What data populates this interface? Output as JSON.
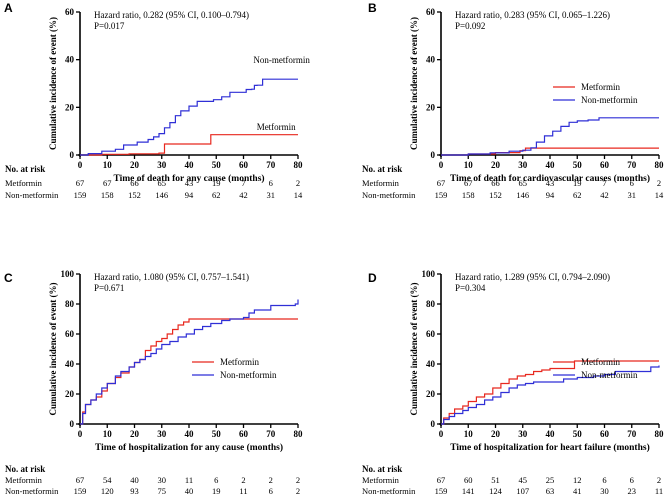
{
  "colors": {
    "metformin": "#e8281f",
    "non_metformin": "#2f2fd6",
    "axis": "#000000"
  },
  "risk_title": "No. at risk",
  "chart_data": [
    {
      "type": "line",
      "panel": "A",
      "title": "",
      "xlabel": "Time of death for any cause (months)",
      "ylabel": "Cumulative incidence of event (%)",
      "xlim": [
        0,
        80
      ],
      "ylim": [
        0,
        60
      ],
      "xticks": [
        0,
        10,
        20,
        30,
        40,
        50,
        60,
        70,
        80
      ],
      "yticks": [
        0,
        20,
        40,
        60
      ],
      "annotation": [
        "Hazard ratio, 0.282 (95% CI, 0.100–0.794)",
        "P=0.017"
      ],
      "legend_style": "inline",
      "series": [
        {
          "name": "Metformin",
          "color_key": "metformin",
          "points": [
            [
              0,
              0
            ],
            [
              8,
              0.3
            ],
            [
              18,
              0.5
            ],
            [
              29,
              0.8
            ],
            [
              31,
              4.6
            ],
            [
              47,
              4.6
            ],
            [
              48,
              8.5
            ],
            [
              80,
              8.5
            ]
          ]
        },
        {
          "name": "Non-metformin",
          "color_key": "non_metformin",
          "points": [
            [
              0,
              0
            ],
            [
              3,
              0.6
            ],
            [
              8,
              1.6
            ],
            [
              13,
              2.4
            ],
            [
              16,
              4.2
            ],
            [
              21,
              5.4
            ],
            [
              25,
              6.5
            ],
            [
              27,
              7.6
            ],
            [
              29,
              9.0
            ],
            [
              31,
              11.4
            ],
            [
              33,
              13.6
            ],
            [
              35,
              16.5
            ],
            [
              37,
              18.5
            ],
            [
              40,
              20.5
            ],
            [
              43,
              22.5
            ],
            [
              49,
              23.2
            ],
            [
              52,
              24.4
            ],
            [
              54,
              24.4
            ],
            [
              55,
              26.3
            ],
            [
              60,
              26.3
            ],
            [
              61,
              27.5
            ],
            [
              63,
              27.6
            ],
            [
              64,
              29.2
            ],
            [
              65,
              29.3
            ],
            [
              67,
              31.8
            ],
            [
              80,
              31.8
            ]
          ]
        }
      ],
      "risk": {
        "times": [
          0,
          10,
          20,
          30,
          40,
          50,
          60,
          70,
          80
        ],
        "rows": [
          {
            "label": "Metformin",
            "values": [
              "67",
              "67",
              "66",
              "65",
              "43",
              "19",
              "7",
              "6",
              "2"
            ]
          },
          {
            "label": "Non-metformin",
            "values": [
              "159",
              "158",
              "152",
              "146",
              "94",
              "62",
              "42",
              "31",
              "14"
            ]
          }
        ]
      }
    },
    {
      "type": "line",
      "panel": "B",
      "title": "",
      "xlabel": "Time of death for cardiovascular causes (months)",
      "ylabel": "Cumulative incidence of event (%)",
      "xlim": [
        0,
        80
      ],
      "ylim": [
        0,
        60
      ],
      "xticks": [
        0,
        10,
        20,
        30,
        40,
        50,
        60,
        70,
        80
      ],
      "yticks": [
        0,
        20,
        40,
        60
      ],
      "annotation": [
        "Hazard ratio, 0.283 (95% CI, 0.065–1.226)",
        "P=0.092"
      ],
      "legend_style": "box",
      "series": [
        {
          "name": "Metformin",
          "color_key": "metformin",
          "points": [
            [
              0,
              0
            ],
            [
              10,
              0.4
            ],
            [
              20,
              1.0
            ],
            [
              29,
              1.8
            ],
            [
              31,
              2.9
            ],
            [
              80,
              2.9
            ]
          ]
        },
        {
          "name": "Non-metformin",
          "color_key": "non_metformin",
          "points": [
            [
              0,
              0
            ],
            [
              10,
              0.4
            ],
            [
              18,
              0.9
            ],
            [
              25,
              1.6
            ],
            [
              30,
              2.0
            ],
            [
              33,
              3.0
            ],
            [
              35,
              5.4
            ],
            [
              38,
              8.0
            ],
            [
              41,
              10.0
            ],
            [
              44,
              12.0
            ],
            [
              47,
              13.7
            ],
            [
              50,
              14.3
            ],
            [
              54,
              14.7
            ],
            [
              58,
              15.6
            ],
            [
              80,
              15.6
            ]
          ]
        }
      ],
      "risk": {
        "times": [
          0,
          10,
          20,
          30,
          40,
          50,
          60,
          70,
          80
        ],
        "rows": [
          {
            "label": "Metformin",
            "values": [
              "67",
              "67",
              "66",
              "65",
              "43",
              "19",
              "7",
              "6",
              "2"
            ]
          },
          {
            "label": "Non-metformin",
            "values": [
              "159",
              "158",
              "152",
              "146",
              "94",
              "62",
              "42",
              "31",
              "14"
            ]
          }
        ]
      }
    },
    {
      "type": "line",
      "panel": "C",
      "title": "",
      "xlabel": "Time of hospitalization for any cause (months)",
      "ylabel": "Cumulative incidence of event (%)",
      "xlim": [
        0,
        80
      ],
      "ylim": [
        0,
        100
      ],
      "xticks": [
        0,
        10,
        20,
        30,
        40,
        50,
        60,
        70,
        80
      ],
      "yticks": [
        0,
        20,
        40,
        60,
        80,
        100
      ],
      "annotation": [
        "Hazard ratio, 1.080 (95% CI, 0.757–1.541)",
        "P=0.671"
      ],
      "legend_style": "box",
      "series": [
        {
          "name": "Metformin",
          "color_key": "metformin",
          "points": [
            [
              0,
              0
            ],
            [
              1,
              8
            ],
            [
              2,
              13
            ],
            [
              4,
              16
            ],
            [
              6,
              18
            ],
            [
              8,
              22
            ],
            [
              10,
              27
            ],
            [
              13,
              31
            ],
            [
              15,
              34
            ],
            [
              18,
              38
            ],
            [
              20,
              41
            ],
            [
              22,
              43
            ],
            [
              24,
              49
            ],
            [
              26,
              52
            ],
            [
              28,
              55
            ],
            [
              30,
              57
            ],
            [
              32,
              60
            ],
            [
              34,
              63
            ],
            [
              36,
              66
            ],
            [
              38,
              68
            ],
            [
              40,
              70
            ],
            [
              80,
              70
            ]
          ]
        },
        {
          "name": "Non-metformin",
          "color_key": "non_metformin",
          "points": [
            [
              0,
              0
            ],
            [
              1,
              7
            ],
            [
              2,
              13
            ],
            [
              4,
              16
            ],
            [
              6,
              20
            ],
            [
              8,
              24
            ],
            [
              10,
              27
            ],
            [
              13,
              32
            ],
            [
              15,
              35
            ],
            [
              18,
              38
            ],
            [
              20,
              41
            ],
            [
              22,
              43
            ],
            [
              24,
              45
            ],
            [
              26,
              47
            ],
            [
              28,
              50
            ],
            [
              30,
              53
            ],
            [
              33,
              55
            ],
            [
              36,
              58
            ],
            [
              39,
              60
            ],
            [
              42,
              63
            ],
            [
              45,
              65
            ],
            [
              48,
              67
            ],
            [
              52,
              69
            ],
            [
              55,
              70
            ],
            [
              60,
              71
            ],
            [
              62,
              74
            ],
            [
              64,
              76
            ],
            [
              68,
              76
            ],
            [
              70,
              79
            ],
            [
              78,
              79
            ],
            [
              79,
              80
            ],
            [
              80,
              83
            ]
          ]
        }
      ],
      "risk": {
        "times": [
          0,
          10,
          20,
          30,
          40,
          50,
          60,
          70,
          80
        ],
        "rows": [
          {
            "label": "Metformin",
            "values": [
              "67",
              "54",
              "40",
              "30",
              "11",
              "6",
              "2",
              "2",
              "2"
            ]
          },
          {
            "label": "Non-metformin",
            "values": [
              "159",
              "120",
              "93",
              "75",
              "40",
              "19",
              "11",
              "6",
              "2"
            ]
          }
        ]
      }
    },
    {
      "type": "line",
      "panel": "D",
      "title": "",
      "xlabel": "Time of hospitalization for heart failure (months)",
      "ylabel": "Cumulative incidence of event (%)",
      "xlim": [
        0,
        80
      ],
      "ylim": [
        0,
        100
      ],
      "xticks": [
        0,
        10,
        20,
        30,
        40,
        50,
        60,
        70,
        80
      ],
      "yticks": [
        0,
        20,
        40,
        60,
        80,
        100
      ],
      "annotation": [
        "Hazard ratio, 1.289 (95% CI, 0.794–2.090)",
        "P=0.304"
      ],
      "legend_style": "box",
      "series": [
        {
          "name": "Metformin",
          "color_key": "metformin",
          "points": [
            [
              0,
              0
            ],
            [
              1,
              4
            ],
            [
              3,
              7
            ],
            [
              5,
              10
            ],
            [
              8,
              12
            ],
            [
              10,
              15
            ],
            [
              13,
              18
            ],
            [
              16,
              20
            ],
            [
              19,
              24
            ],
            [
              22,
              27
            ],
            [
              25,
              30
            ],
            [
              28,
              32
            ],
            [
              31,
              33
            ],
            [
              34,
              35
            ],
            [
              37,
              36
            ],
            [
              40,
              37
            ],
            [
              48,
              37
            ],
            [
              49,
              42
            ],
            [
              80,
              42
            ]
          ]
        },
        {
          "name": "Non-metformin",
          "color_key": "non_metformin",
          "points": [
            [
              0,
              0
            ],
            [
              1,
              3
            ],
            [
              3,
              5
            ],
            [
              5,
              7
            ],
            [
              8,
              9
            ],
            [
              10,
              11
            ],
            [
              13,
              13
            ],
            [
              16,
              16
            ],
            [
              19,
              18
            ],
            [
              22,
              21
            ],
            [
              25,
              24
            ],
            [
              28,
              26
            ],
            [
              31,
              27
            ],
            [
              34,
              28
            ],
            [
              38,
              28
            ],
            [
              45,
              30
            ],
            [
              50,
              31
            ],
            [
              56,
              32
            ],
            [
              60,
              33
            ],
            [
              64,
              35
            ],
            [
              76,
              35
            ],
            [
              77,
              38
            ],
            [
              80,
              39
            ]
          ]
        }
      ],
      "risk": {
        "times": [
          0,
          10,
          20,
          30,
          40,
          50,
          60,
          70,
          80
        ],
        "rows": [
          {
            "label": "Metformin",
            "values": [
              "67",
              "60",
              "51",
              "45",
              "25",
              "12",
              "6",
              "6",
              "2"
            ]
          },
          {
            "label": "Non-metformin",
            "values": [
              "159",
              "141",
              "124",
              "107",
              "63",
              "41",
              "30",
              "23",
              "11"
            ]
          }
        ]
      }
    }
  ]
}
